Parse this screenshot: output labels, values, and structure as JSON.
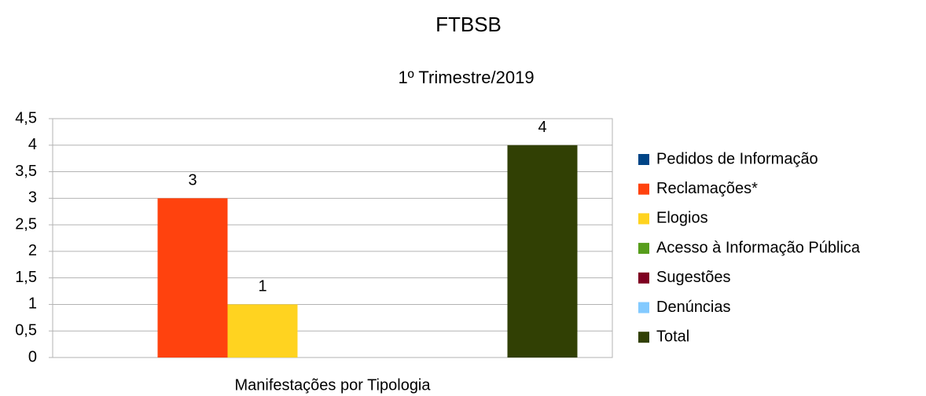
{
  "chart_data": {
    "type": "bar",
    "title": "FTBSB",
    "subtitle": "1º Trimestre/2019",
    "x_label": "Manifestações por Tipologia",
    "categories": [
      null
    ],
    "series": [
      {
        "name": "Pedidos de Informação",
        "color": "#004586",
        "values": [
          0
        ]
      },
      {
        "name": "Reclamações*",
        "color": "#ff420e",
        "values": [
          3
        ]
      },
      {
        "name": "Elogios",
        "color": "#ffd320",
        "values": [
          1
        ]
      },
      {
        "name": "Acesso à Informação Pública",
        "color": "#579d1c",
        "values": [
          0
        ]
      },
      {
        "name": "Sugestões",
        "color": "#7e0021",
        "values": [
          0
        ]
      },
      {
        "name": "Denúncias",
        "color": "#83caff",
        "values": [
          0
        ]
      },
      {
        "name": "Total",
        "color": "#314004",
        "values": [
          4
        ]
      }
    ],
    "ylim": [
      0,
      4.5
    ],
    "yticks": [
      0,
      {
        "value": 0.5,
        "label": "0,5"
      },
      1,
      {
        "value": 1.5,
        "label": "1,5"
      },
      2,
      {
        "value": 2.5,
        "label": "2,5"
      },
      3,
      {
        "value": 3.5,
        "label": "3,5"
      },
      4,
      {
        "value": 4.5,
        "label": "4,5"
      }
    ],
    "grid": true,
    "legend": "right"
  }
}
